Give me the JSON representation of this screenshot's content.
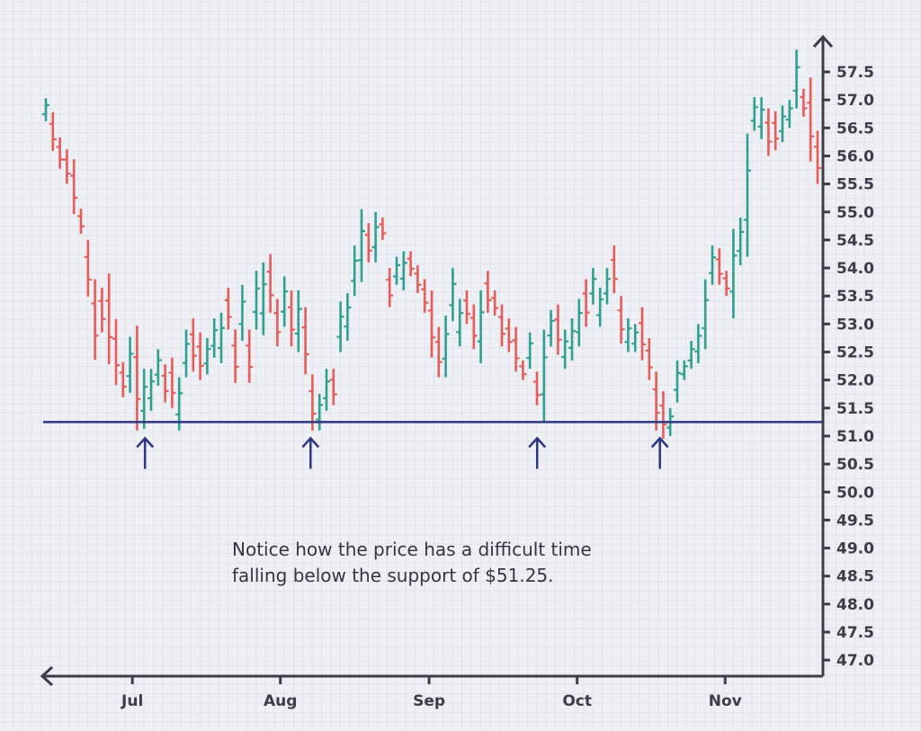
{
  "chart_data": {
    "type": "ohlc",
    "title": "",
    "xlabel": "",
    "ylabel": "",
    "ylim": [
      47.0,
      57.5
    ],
    "y_ticks": [
      "47.0",
      "47.5",
      "48.0",
      "48.5",
      "49.0",
      "49.5",
      "50.0",
      "50.5",
      "51.0",
      "51.5",
      "52.0",
      "52.5",
      "53.0",
      "53.5",
      "54.0",
      "54.5",
      "55.0",
      "55.5",
      "56.0",
      "56.5",
      "57.0",
      "57.5"
    ],
    "x_ticks": [
      {
        "label": "Jul",
        "index": 12.2
      },
      {
        "label": "Aug",
        "index": 33.3
      },
      {
        "label": "Sep",
        "index": 54.5
      },
      {
        "label": "Oct",
        "index": 75.6
      },
      {
        "label": "Nov",
        "index": 96.7
      }
    ],
    "bar_fields": [
      "high",
      "low",
      "direction"
    ],
    "bars": [
      [
        57.03,
        56.62,
        "up"
      ],
      [
        56.78,
        56.09,
        "down"
      ],
      [
        56.33,
        55.77,
        "down"
      ],
      [
        56.12,
        55.5,
        "down"
      ],
      [
        55.94,
        54.96,
        "down"
      ],
      [
        55.06,
        54.61,
        "down"
      ],
      [
        54.5,
        53.49,
        "down"
      ],
      [
        53.8,
        52.36,
        "down"
      ],
      [
        53.65,
        52.85,
        "down"
      ],
      [
        53.9,
        52.28,
        "down"
      ],
      [
        53.09,
        51.91,
        "down"
      ],
      [
        52.32,
        51.69,
        "down"
      ],
      [
        52.77,
        51.77,
        "up"
      ],
      [
        52.97,
        51.1,
        "down"
      ],
      [
        52.2,
        51.13,
        "up"
      ],
      [
        52.2,
        51.45,
        "up"
      ],
      [
        52.55,
        51.9,
        "up"
      ],
      [
        52.28,
        51.6,
        "down"
      ],
      [
        52.4,
        51.5,
        "down"
      ],
      [
        52.05,
        51.1,
        "up"
      ],
      [
        52.9,
        52.05,
        "up"
      ],
      [
        53.1,
        52.15,
        "down"
      ],
      [
        52.85,
        52.0,
        "down"
      ],
      [
        52.75,
        52.1,
        "up"
      ],
      [
        53.1,
        52.4,
        "up"
      ],
      [
        53.2,
        52.3,
        "up"
      ],
      [
        53.65,
        52.9,
        "down"
      ],
      [
        52.9,
        51.95,
        "down"
      ],
      [
        53.7,
        52.7,
        "up"
      ],
      [
        52.9,
        51.95,
        "down"
      ],
      [
        53.95,
        52.9,
        "up"
      ],
      [
        54.1,
        52.8,
        "up"
      ],
      [
        54.25,
        53.2,
        "down"
      ],
      [
        53.45,
        52.6,
        "down"
      ],
      [
        53.85,
        52.95,
        "up"
      ],
      [
        53.6,
        52.6,
        "down"
      ],
      [
        53.6,
        52.5,
        "up"
      ],
      [
        53.3,
        52.1,
        "down"
      ],
      [
        52.1,
        51.1,
        "down"
      ],
      [
        51.75,
        51.1,
        "up"
      ],
      [
        52.2,
        51.45,
        "up"
      ],
      [
        52.2,
        51.55,
        "down"
      ],
      [
        53.4,
        52.5,
        "up"
      ],
      [
        53.55,
        52.7,
        "up"
      ],
      [
        54.4,
        53.5,
        "up"
      ],
      [
        55.05,
        53.75,
        "up"
      ],
      [
        54.8,
        54.1,
        "down"
      ],
      [
        55.0,
        54.1,
        "up"
      ],
      [
        54.9,
        54.5,
        "down"
      ],
      [
        54.0,
        53.3,
        "down"
      ],
      [
        54.2,
        53.7,
        "up"
      ],
      [
        54.3,
        53.6,
        "up"
      ],
      [
        54.3,
        53.85,
        "down"
      ],
      [
        54.05,
        53.55,
        "down"
      ],
      [
        53.8,
        53.2,
        "down"
      ],
      [
        53.6,
        52.4,
        "down"
      ],
      [
        52.95,
        52.05,
        "down"
      ],
      [
        53.15,
        52.05,
        "up"
      ],
      [
        54.0,
        53.05,
        "up"
      ],
      [
        53.45,
        52.6,
        "up"
      ],
      [
        53.6,
        53.0,
        "down"
      ],
      [
        53.35,
        52.55,
        "down"
      ],
      [
        53.6,
        52.3,
        "up"
      ],
      [
        53.95,
        53.2,
        "down"
      ],
      [
        53.6,
        53.15,
        "down"
      ],
      [
        53.35,
        52.6,
        "down"
      ],
      [
        53.1,
        52.5,
        "down"
      ],
      [
        52.95,
        52.15,
        "down"
      ],
      [
        52.35,
        52.0,
        "down"
      ],
      [
        52.85,
        52.2,
        "up"
      ],
      [
        52.15,
        51.55,
        "down"
      ],
      [
        52.9,
        51.25,
        "up"
      ],
      [
        53.25,
        52.6,
        "up"
      ],
      [
        53.35,
        52.45,
        "down"
      ],
      [
        52.9,
        52.2,
        "up"
      ],
      [
        53.1,
        52.35,
        "up"
      ],
      [
        53.45,
        52.6,
        "up"
      ],
      [
        53.8,
        52.95,
        "down"
      ],
      [
        54.0,
        53.35,
        "up"
      ],
      [
        53.65,
        52.95,
        "up"
      ],
      [
        54.0,
        53.35,
        "up"
      ],
      [
        54.4,
        53.55,
        "down"
      ],
      [
        53.5,
        52.65,
        "down"
      ],
      [
        53.1,
        52.5,
        "up"
      ],
      [
        53.0,
        52.5,
        "up"
      ],
      [
        53.3,
        52.35,
        "down"
      ],
      [
        52.75,
        52.0,
        "down"
      ],
      [
        52.15,
        51.1,
        "down"
      ],
      [
        51.8,
        50.95,
        "down"
      ],
      [
        51.5,
        51.0,
        "up"
      ],
      [
        52.35,
        51.6,
        "up"
      ],
      [
        52.35,
        52.0,
        "up"
      ],
      [
        52.7,
        52.2,
        "up"
      ],
      [
        53.0,
        52.3,
        "up"
      ],
      [
        53.8,
        52.55,
        "up"
      ],
      [
        54.4,
        53.7,
        "up"
      ],
      [
        54.35,
        53.7,
        "down"
      ],
      [
        53.95,
        53.5,
        "down"
      ],
      [
        54.7,
        53.1,
        "up"
      ],
      [
        54.9,
        54.05,
        "up"
      ],
      [
        56.4,
        54.2,
        "up"
      ],
      [
        57.05,
        56.45,
        "up"
      ],
      [
        57.05,
        56.3,
        "up"
      ],
      [
        56.85,
        56.0,
        "down"
      ],
      [
        56.8,
        56.1,
        "down"
      ],
      [
        56.9,
        56.25,
        "up"
      ],
      [
        57.0,
        56.5,
        "up"
      ],
      [
        57.9,
        56.85,
        "up"
      ],
      [
        57.2,
        56.7,
        "down"
      ],
      [
        57.4,
        55.9,
        "down"
      ],
      [
        56.45,
        55.5,
        "down"
      ]
    ],
    "support_level": 51.25,
    "support_touch_indices": [
      14,
      37.6,
      69.9,
      87.4
    ],
    "annotation": {
      "line1": "Notice how the price has a difficult time",
      "line2": "falling below the support of $51.25."
    },
    "colors": {
      "up": "#2f9f90",
      "down": "#e85c57",
      "support": "#2c3784",
      "axis": "#3d3d47",
      "grid": "#dde0ea"
    }
  }
}
